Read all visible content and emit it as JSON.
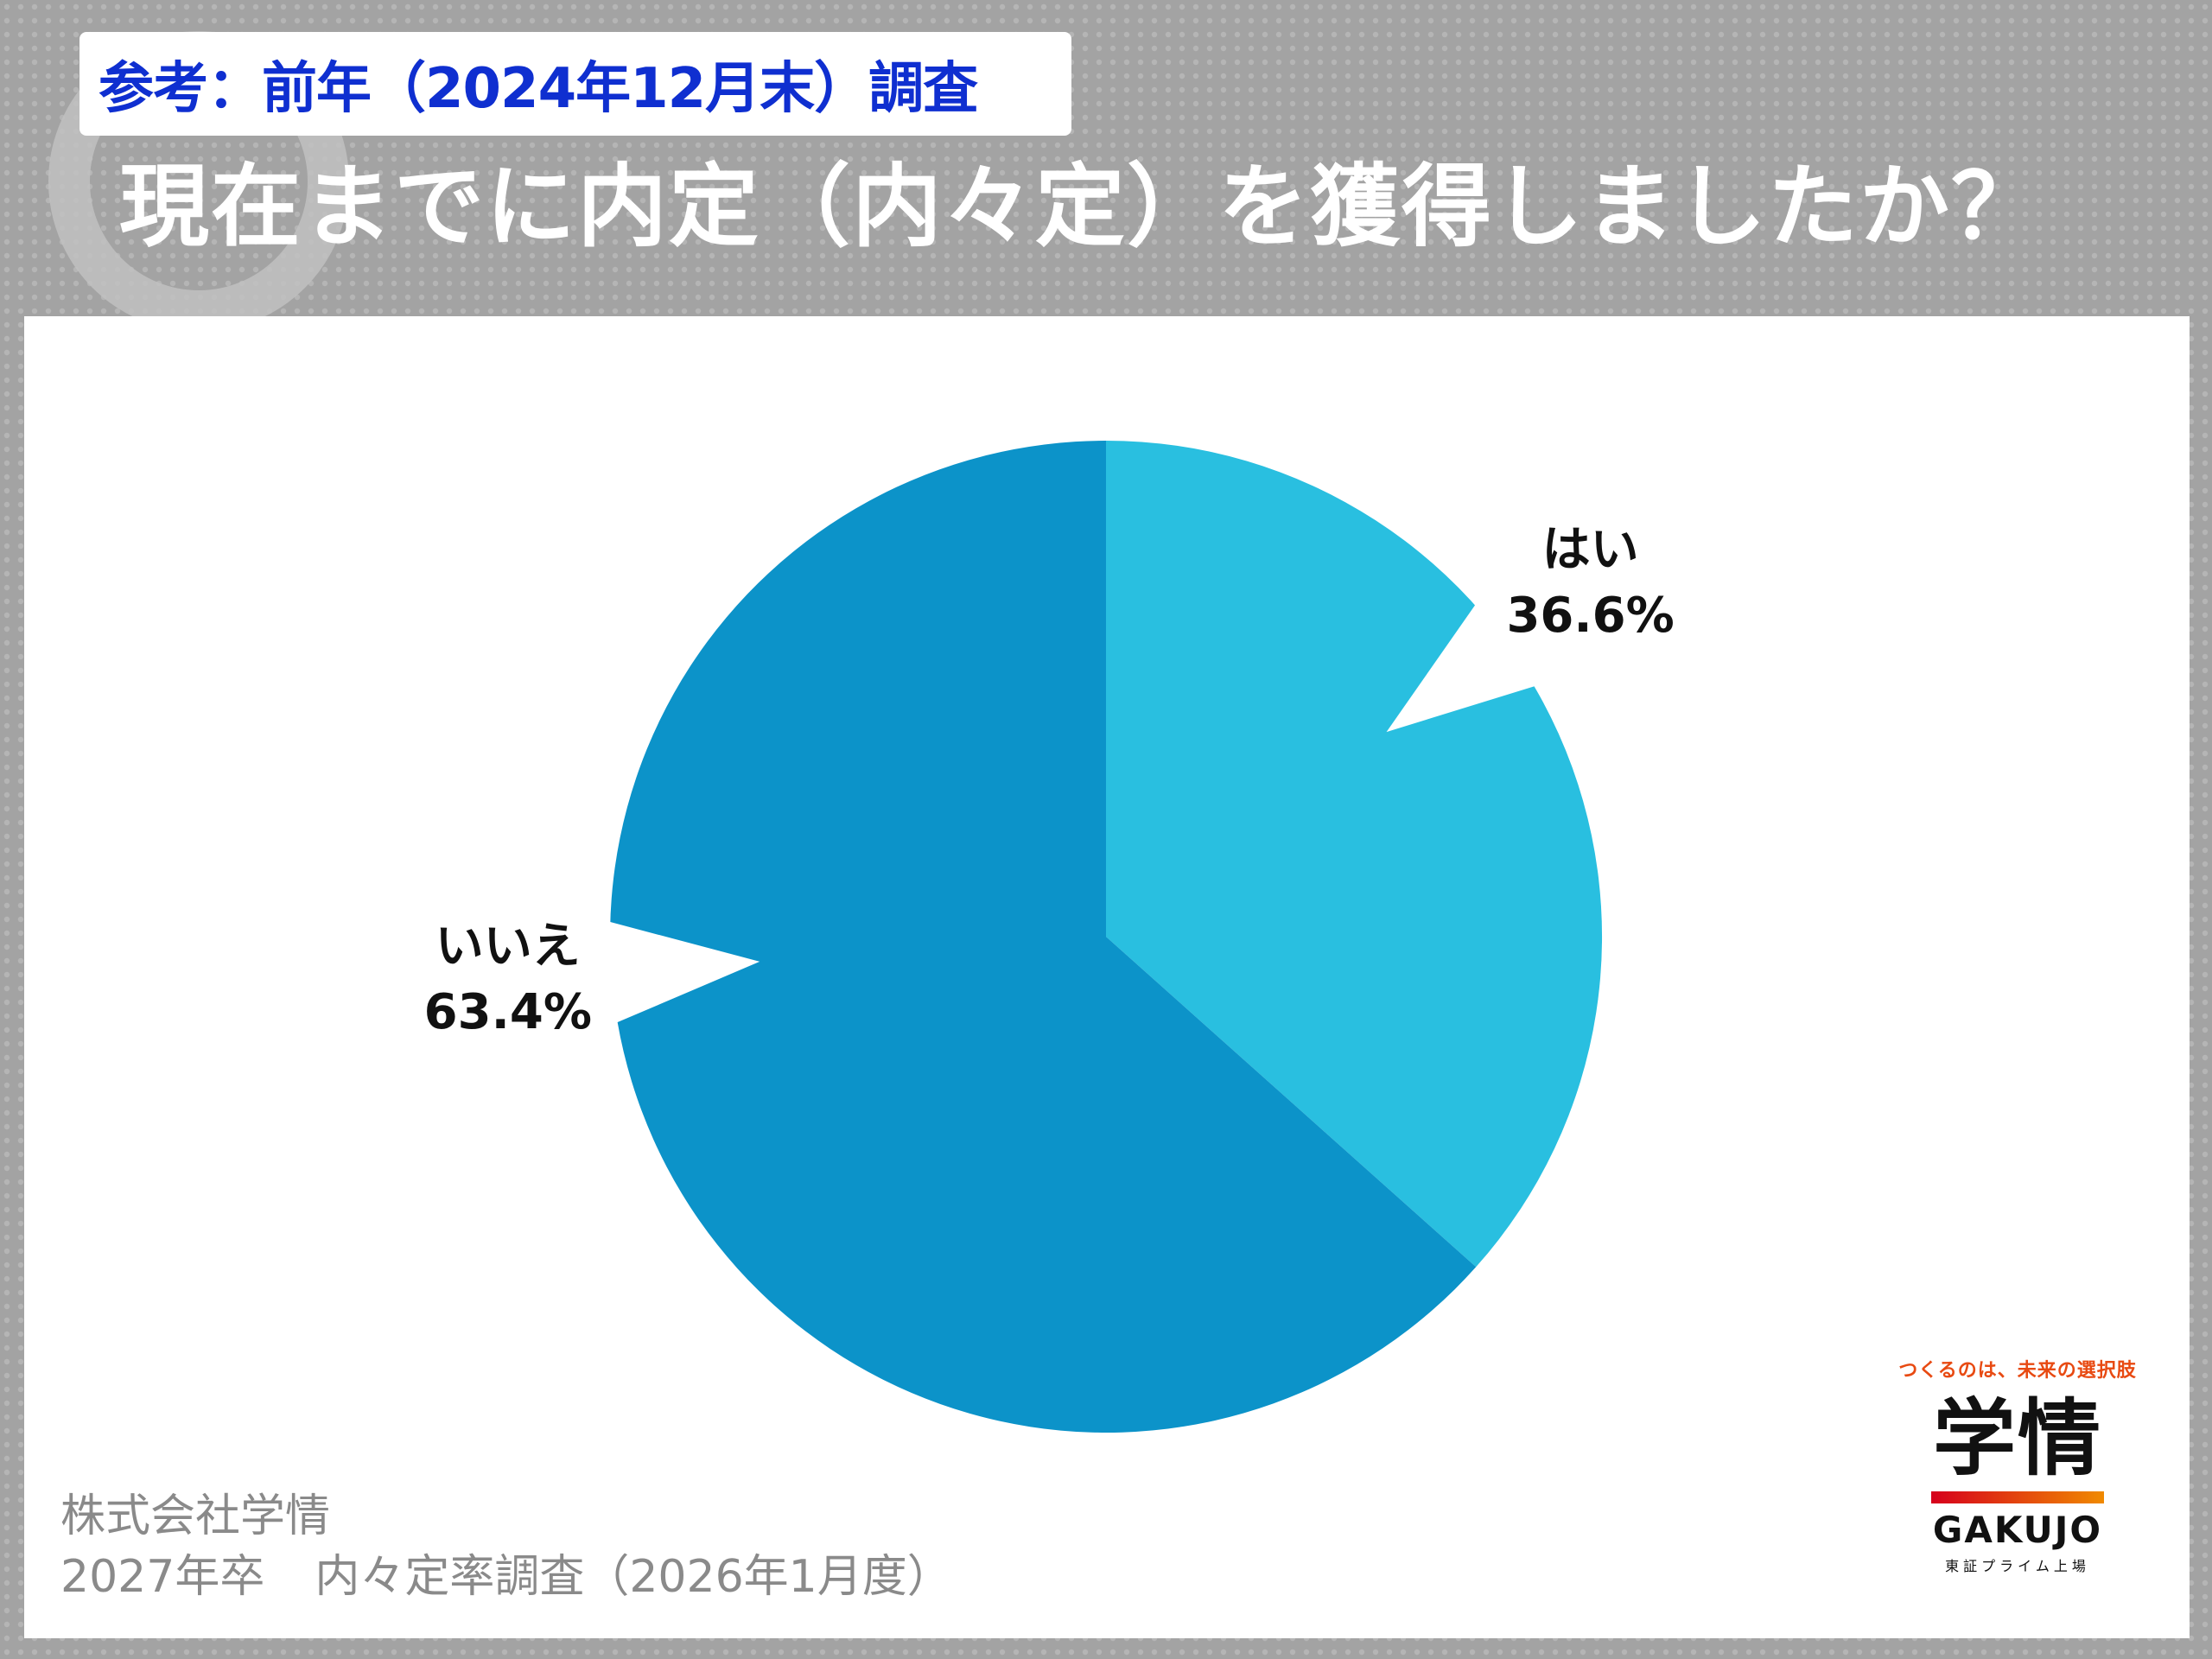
{
  "header": {
    "reference_tag": "参考：前年（2024年12月末）調査",
    "question": "現在までに内定（内々定）を獲得しましたか？"
  },
  "chart_data": {
    "type": "pie",
    "categories": [
      "はい",
      "いいえ"
    ],
    "values": [
      36.6,
      63.4
    ],
    "value_labels": [
      "36.6%",
      "63.4%"
    ],
    "colors": [
      "#29bfe0",
      "#0c93c9"
    ],
    "start_angle": "12 o'clock, clockwise",
    "labels_outside": true
  },
  "footer": {
    "company": "株式会社学情",
    "survey_prefix": "2027年卒",
    "survey_name": "内々定率調査（2026年1月度）"
  },
  "logo": {
    "tagline": "つくるのは、未来の選択肢",
    "mark": "学情",
    "brand": "GAKUJO",
    "listing": "東証プライム上場"
  }
}
